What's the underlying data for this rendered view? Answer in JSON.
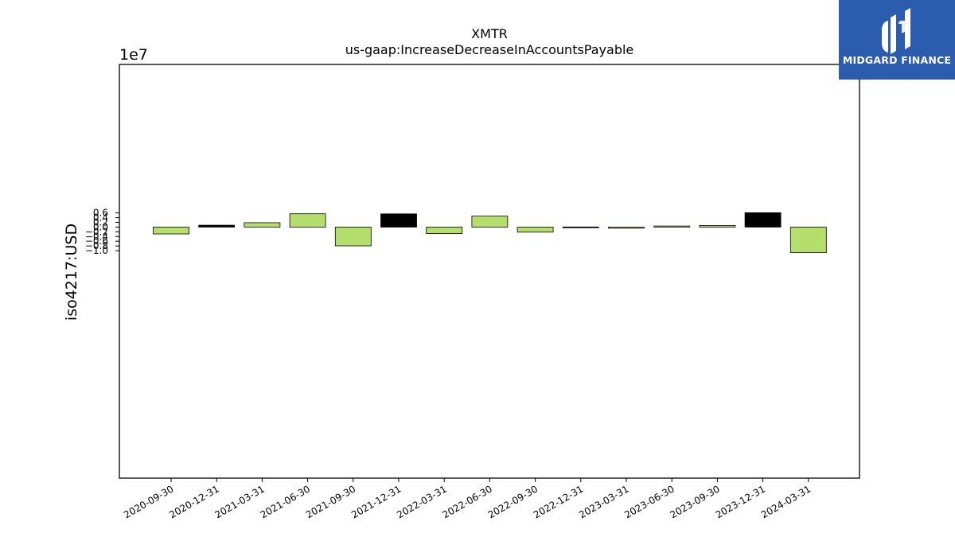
{
  "brand": {
    "name": "MIDGARD FINANCE",
    "bg_color": "#2b5cad",
    "icon": "midgard-logo-mark"
  },
  "chart_data": {
    "type": "bar",
    "title": "XMTR",
    "subtitle": "us-gaap:IncreaseDecreaseInAccountsPayable",
    "ylabel": "iso4217:USD",
    "xlabel": "",
    "scale_label": "1e7",
    "ylim": [
      -10.65,
      6.9
    ],
    "yticks": [
      0.6,
      0.4,
      0.2,
      0.0,
      -0.2,
      -0.4,
      -0.6,
      -0.8,
      -1.0
    ],
    "ytick_labels": [
      "0.6",
      "0.4",
      "0.2",
      "0.0",
      "−0.2",
      "−0.4",
      "−0.6",
      "−0.8",
      "−1.0"
    ],
    "categories": [
      "2020-09-30",
      "2020-12-31",
      "2021-03-31",
      "2021-06-30",
      "2021-09-30",
      "2021-12-31",
      "2022-03-31",
      "2022-06-30",
      "2022-09-30",
      "2022-12-31",
      "2023-03-31",
      "2023-06-30",
      "2023-09-30",
      "2023-12-31",
      "2024-03-31"
    ],
    "values": [
      -0.29,
      0.08,
      0.185,
      0.565,
      -0.795,
      0.56,
      -0.275,
      0.465,
      -0.215,
      0.005,
      -0.05,
      0.045,
      0.068,
      0.61,
      -1.08
    ],
    "colors": [
      "#b5df6c",
      "#000000",
      "#b5df6c",
      "#b5df6c",
      "#b5df6c",
      "#000000",
      "#b5df6c",
      "#b5df6c",
      "#b5df6c",
      "#000000",
      "#b5df6c",
      "#b5df6c",
      "#b5df6c",
      "#000000",
      "#b5df6c"
    ],
    "grid": false,
    "legend": false
  }
}
